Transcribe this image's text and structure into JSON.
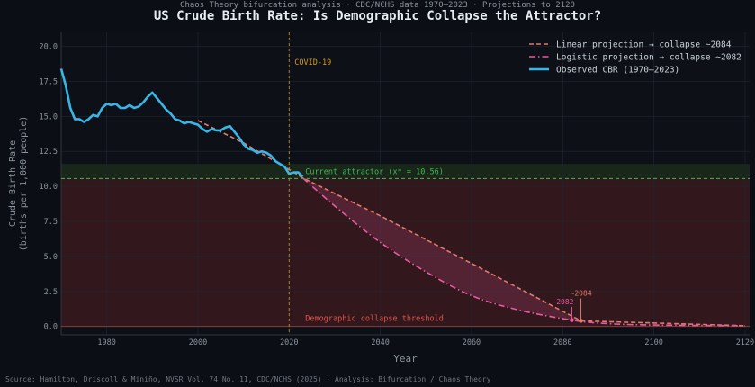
{
  "header": {
    "supertitle": "Chaos Theory bifurcation analysis · CDC/NCHS data 1970–2023 · Projections to 2120",
    "title": "US Crude Birth Rate: Is Demographic Collapse the Attractor?"
  },
  "footer": "Source: Hamilton, Driscoll & Miniño, NVSR Vol. 74 No. 11, CDC/NCHS (2025)  ·  Analysis: Bifurcation / Chaos Theory",
  "colors": {
    "observed": "#38b6e8",
    "linear": "#e07a6a",
    "logistic": "#e75aa0",
    "attractor": "#3fb950",
    "covid": "#d29922",
    "collapse_zone": "#3a1a1f",
    "collapse_text": "#e5534b"
  },
  "chart_data": {
    "type": "line",
    "xlabel": "Year",
    "ylabel": "Crude Birth Rate\n(births per 1,000 people)",
    "xlim": [
      1970,
      2121
    ],
    "ylim": [
      -0.6,
      21
    ],
    "xticks": [
      1980,
      2000,
      2020,
      2040,
      2060,
      2080,
      2100,
      2120
    ],
    "yticks": [
      0.0,
      2.5,
      5.0,
      7.5,
      10.0,
      12.5,
      15.0,
      17.5,
      20.0
    ],
    "legend_position": "top-right",
    "series": [
      {
        "name": "Linear projection  → collapse ~2084",
        "style": "dashed",
        "x": [
          2000,
          2010,
          2020,
          2023,
          2040,
          2060,
          2084,
          2120
        ],
        "y": [
          14.7,
          13.1,
          11.2,
          10.6,
          7.9,
          4.5,
          0.4,
          0.05
        ]
      },
      {
        "name": "Logistic projection → collapse ~2082",
        "style": "dashdot",
        "x": [
          2023,
          2030,
          2040,
          2050,
          2060,
          2070,
          2082,
          2090,
          2100,
          2120
        ],
        "y": [
          10.6,
          8.6,
          6.0,
          3.9,
          2.2,
          1.2,
          0.45,
          0.2,
          0.1,
          0.05
        ]
      },
      {
        "name": "Observed CBR (1970–2023)",
        "style": "solid",
        "x": [
          1970,
          1971,
          1972,
          1973,
          1974,
          1975,
          1976,
          1977,
          1978,
          1979,
          1980,
          1981,
          1982,
          1983,
          1984,
          1985,
          1986,
          1987,
          1988,
          1989,
          1990,
          1991,
          1992,
          1993,
          1994,
          1995,
          1996,
          1997,
          1998,
          1999,
          2000,
          2001,
          2002,
          2003,
          2004,
          2005,
          2006,
          2007,
          2008,
          2009,
          2010,
          2011,
          2012,
          2013,
          2014,
          2015,
          2016,
          2017,
          2018,
          2019,
          2020,
          2021,
          2022,
          2023
        ],
        "y": [
          18.4,
          17.2,
          15.6,
          14.8,
          14.8,
          14.6,
          14.8,
          15.1,
          15.0,
          15.6,
          15.9,
          15.8,
          15.9,
          15.6,
          15.6,
          15.8,
          15.6,
          15.7,
          16.0,
          16.4,
          16.7,
          16.3,
          15.9,
          15.5,
          15.2,
          14.8,
          14.7,
          14.5,
          14.6,
          14.5,
          14.4,
          14.1,
          13.9,
          14.1,
          14.0,
          14.0,
          14.2,
          14.3,
          13.9,
          13.5,
          13.0,
          12.7,
          12.6,
          12.4,
          12.5,
          12.4,
          12.2,
          11.8,
          11.6,
          11.4,
          10.9,
          11.0,
          11.0,
          10.7
        ]
      }
    ],
    "annotations": [
      {
        "text": "COVID-19",
        "x": 2020
      },
      {
        "text": "Current attractor (x* = 10.56)",
        "y": 10.56
      },
      {
        "text": "Demographic collapse threshold",
        "y": 0
      },
      {
        "text": "~2084",
        "x": 2084
      },
      {
        "text": "~2082",
        "x": 2082
      }
    ]
  }
}
